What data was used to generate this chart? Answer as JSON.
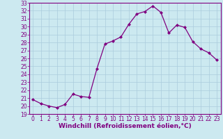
{
  "x": [
    0,
    1,
    2,
    3,
    4,
    5,
    6,
    7,
    8,
    9,
    10,
    11,
    12,
    13,
    14,
    15,
    16,
    17,
    18,
    19,
    20,
    21,
    22,
    23
  ],
  "y": [
    20.8,
    20.3,
    20.0,
    19.8,
    20.2,
    21.5,
    21.2,
    21.1,
    24.7,
    27.8,
    28.2,
    28.7,
    30.3,
    31.6,
    31.9,
    32.6,
    31.8,
    29.2,
    30.2,
    29.9,
    28.1,
    27.2,
    26.7,
    25.8
  ],
  "line_color": "#800080",
  "marker": "D",
  "marker_size": 2,
  "bg_color": "#cce9f0",
  "grid_color": "#aaccdd",
  "xlabel": "Windchill (Refroidissement éolien,°C)",
  "ylim": [
    19,
    33
  ],
  "xlim_min": -0.5,
  "xlim_max": 23.5,
  "yticks": [
    19,
    20,
    21,
    22,
    23,
    24,
    25,
    26,
    27,
    28,
    29,
    30,
    31,
    32,
    33
  ],
  "xticks": [
    0,
    1,
    2,
    3,
    4,
    5,
    6,
    7,
    8,
    9,
    10,
    11,
    12,
    13,
    14,
    15,
    16,
    17,
    18,
    19,
    20,
    21,
    22,
    23
  ],
  "tick_color": "#800080",
  "spine_color": "#800080",
  "xlabel_fontsize": 6.5,
  "tick_fontsize": 5.5
}
